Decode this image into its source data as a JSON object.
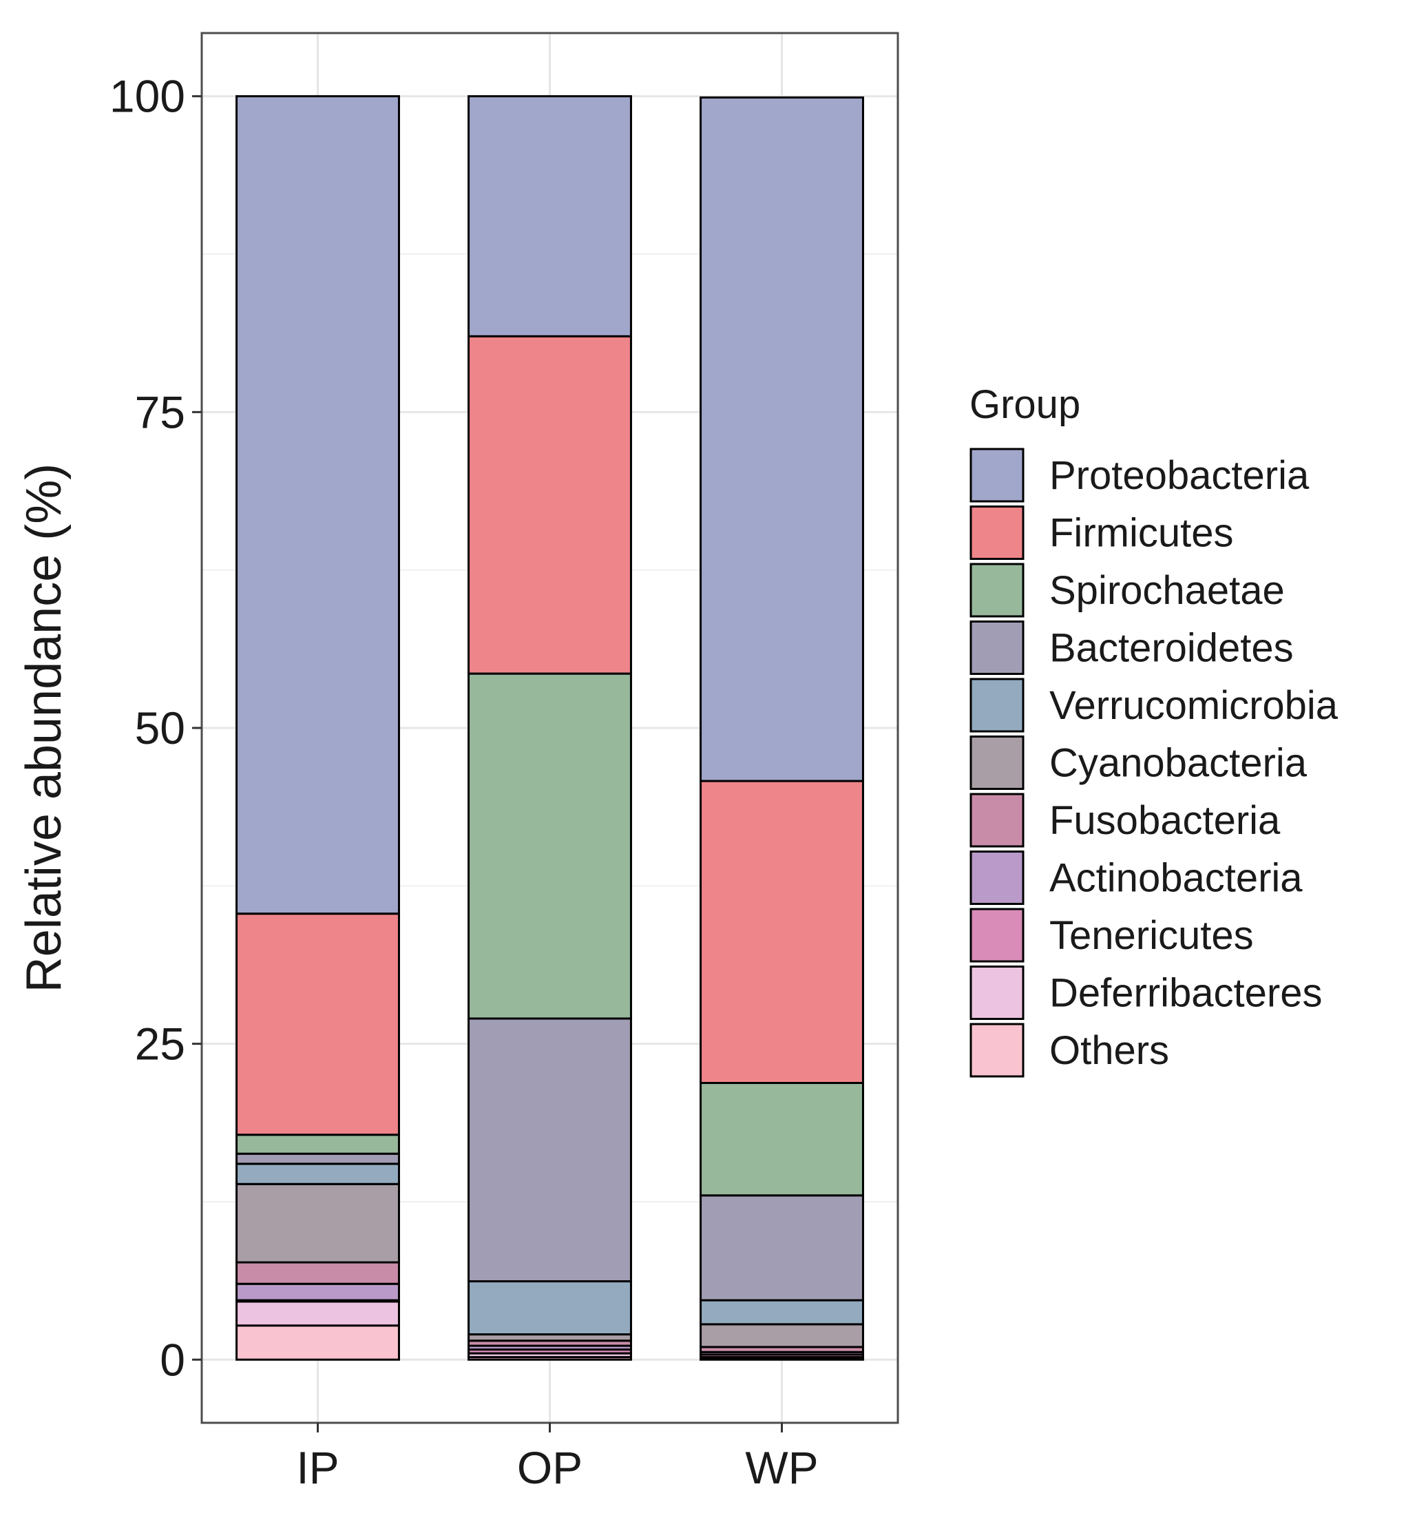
{
  "chart_data": {
    "type": "bar",
    "stacked": true,
    "title": "",
    "xlabel": "",
    "ylabel": "Relative abundance (%)",
    "ylim": [
      -5,
      105
    ],
    "yticks": [
      0,
      25,
      50,
      75,
      100
    ],
    "grid": true,
    "legend_position": "right",
    "legend_title": "Group",
    "categories": [
      "IP",
      "OP",
      "WP"
    ],
    "series": [
      {
        "name": "Others",
        "color": "#f9c4cf",
        "values": [
          2.7,
          0.2,
          0.1
        ]
      },
      {
        "name": "Deferribacteres",
        "color": "#ecc3e0",
        "values": [
          1.9,
          0.3,
          0.1
        ]
      },
      {
        "name": "Tenericutes",
        "color": "#d98cb8",
        "values": [
          0.1,
          0.3,
          0.2
        ]
      },
      {
        "name": "Actinobacteria",
        "color": "#b99ac8",
        "values": [
          1.3,
          0.3,
          0.2
        ]
      },
      {
        "name": "Fusobacteria",
        "color": "#c98ca8",
        "values": [
          1.7,
          0.4,
          0.4
        ]
      },
      {
        "name": "Cyanobacteria",
        "color": "#a99ea6",
        "values": [
          6.2,
          0.5,
          1.8
        ]
      },
      {
        "name": "Verrucomicrobia",
        "color": "#93aabf",
        "values": [
          1.6,
          4.2,
          1.9
        ]
      },
      {
        "name": "Bacteroidetes",
        "color": "#a19db4",
        "values": [
          0.8,
          20.8,
          8.3
        ]
      },
      {
        "name": "Spirochaetae",
        "color": "#98b89c",
        "values": [
          1.5,
          27.3,
          8.9
        ]
      },
      {
        "name": "Firmicutes",
        "color": "#ee858a",
        "values": [
          17.5,
          26.7,
          23.9
        ]
      },
      {
        "name": "Proteobacteria",
        "color": "#a1a6cb",
        "values": [
          64.7,
          19.0,
          54.1
        ]
      }
    ],
    "legend_order": [
      "Proteobacteria",
      "Firmicutes",
      "Spirochaetae",
      "Bacteroidetes",
      "Verrucomicrobia",
      "Cyanobacteria",
      "Fusobacteria",
      "Actinobacteria",
      "Tenericutes",
      "Deferribacteres",
      "Others"
    ]
  }
}
